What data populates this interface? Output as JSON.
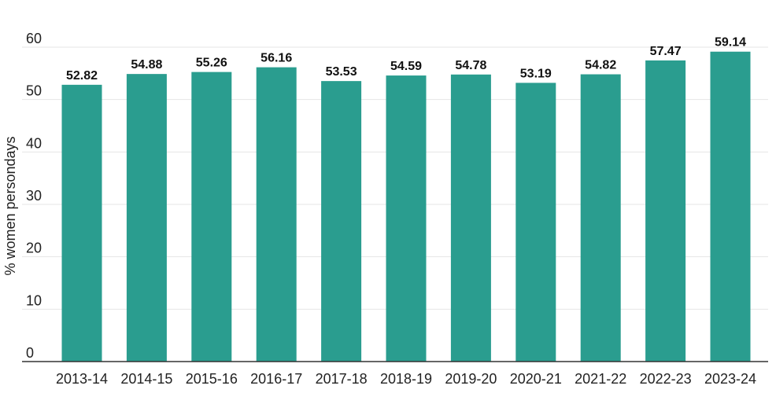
{
  "chart_data": {
    "type": "bar",
    "categories": [
      "2013-14",
      "2014-15",
      "2015-16",
      "2016-17",
      "2017-18",
      "2018-19",
      "2019-20",
      "2020-21",
      "2021-22",
      "2022-23",
      "2023-24"
    ],
    "values": [
      52.82,
      54.88,
      55.26,
      56.16,
      53.53,
      54.59,
      54.78,
      53.19,
      54.82,
      57.47,
      59.14
    ],
    "data_labels": [
      "52.82",
      "54.88",
      "55.26",
      "56.16",
      "53.53",
      "54.59",
      "54.78",
      "53.19",
      "54.82",
      "57.47",
      "59.14"
    ],
    "ylabel": "% women persondays",
    "ylim": [
      0,
      60
    ],
    "yticks": [
      0,
      10,
      20,
      30,
      40,
      50,
      60
    ],
    "ytick_labels": [
      "0",
      "10",
      "20",
      "30",
      "40",
      "50",
      "60"
    ],
    "grid": true,
    "bar_color": "#2a9d8f"
  }
}
